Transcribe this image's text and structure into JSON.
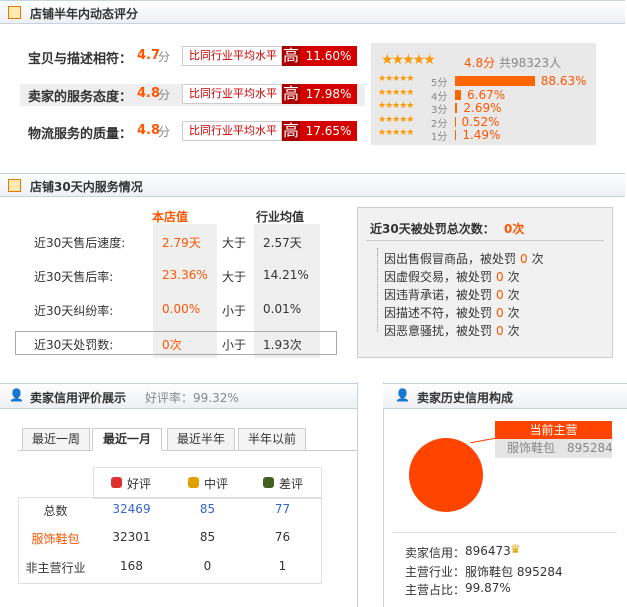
{
  "dynamic_rating": {
    "title": "店铺半年内动态评分",
    "rows": [
      {
        "label": "宝贝与描述相符：",
        "score": "4.7",
        "unit": "分",
        "compare": "比同行业平均水平",
        "level": "高",
        "percent": "11.60%"
      },
      {
        "label": "卖家的服务态度：",
        "score": "4.8",
        "unit": "分",
        "compare": "比同行业平均水平",
        "level": "高",
        "percent": "17.98%"
      },
      {
        "label": "物流服务的质量：",
        "score": "4.8",
        "unit": "分",
        "compare": "比同行业平均水平",
        "level": "高",
        "percent": "17.65%"
      }
    ],
    "summary": {
      "score": "4.8分",
      "total": "共98323人"
    },
    "distribution": {
      "stars": [
        "5分",
        "4分",
        "3分",
        "2分",
        "1分"
      ],
      "values": [
        88.63,
        6.67,
        2.69,
        0.52,
        1.49
      ],
      "value_labels": [
        "88.63%",
        "6.67%",
        "2.69%",
        "0.52%",
        "1.49%"
      ]
    }
  },
  "service": {
    "title": "店铺30天内服务情况",
    "col_shop": "本店值",
    "col_avg": "行业均值",
    "rows": [
      {
        "label": "近30天售后速度:",
        "shop": "2.79天",
        "compare": "大于",
        "avg": "2.57天"
      },
      {
        "label": "近30天售后率:",
        "shop": "23.36%",
        "compare": "大于",
        "avg": "14.21%"
      },
      {
        "label": "近30天纠纷率:",
        "shop": "0.00%",
        "compare": "小于",
        "avg": "0.01%"
      },
      {
        "label": "近30天处罚数:",
        "shop": "0次",
        "compare": "小于",
        "avg": "1.93次"
      }
    ],
    "penalty": {
      "title": "近30天被处罚总次数：",
      "total": "0次",
      "items": [
        {
          "reason": "因出售假冒商品，被处罚",
          "count": "0",
          "unit": "次"
        },
        {
          "reason": "因虚假交易，被处罚",
          "count": "0",
          "unit": "次"
        },
        {
          "reason": "因违背承诺，被处罚",
          "count": "0",
          "unit": "次"
        },
        {
          "reason": "因描述不符，被处罚",
          "count": "0",
          "unit": "次"
        },
        {
          "reason": "因恶意骚扰，被处罚",
          "count": "0",
          "unit": "次"
        }
      ]
    }
  },
  "credit": {
    "title": "卖家信用评价展示",
    "good_rate": "好评率：99.32%",
    "tabs": [
      "最近一周",
      "最近一月",
      "最近半年",
      "半年以前"
    ],
    "table": {
      "header": [
        "好评",
        "中评",
        "差评"
      ],
      "rows": [
        [
          "总数",
          "32469",
          "85",
          "77"
        ],
        [
          "服饰鞋包",
          "32301",
          "85",
          "76"
        ],
        [
          "非主营行业",
          "168",
          "0",
          "1"
        ]
      ]
    }
  },
  "history": {
    "title": "卖家历史信用构成",
    "tooltip_title": "当前主营",
    "tooltip_category": "服饰鞋包",
    "tooltip_value": "895284",
    "credit_label": "卖家信用：",
    "credit_value": "896473",
    "industry_label": "主营行业：",
    "industry_value": "服饰鞋包 895284",
    "ratio_label": "主营占比：",
    "ratio_value": "99.87%"
  }
}
